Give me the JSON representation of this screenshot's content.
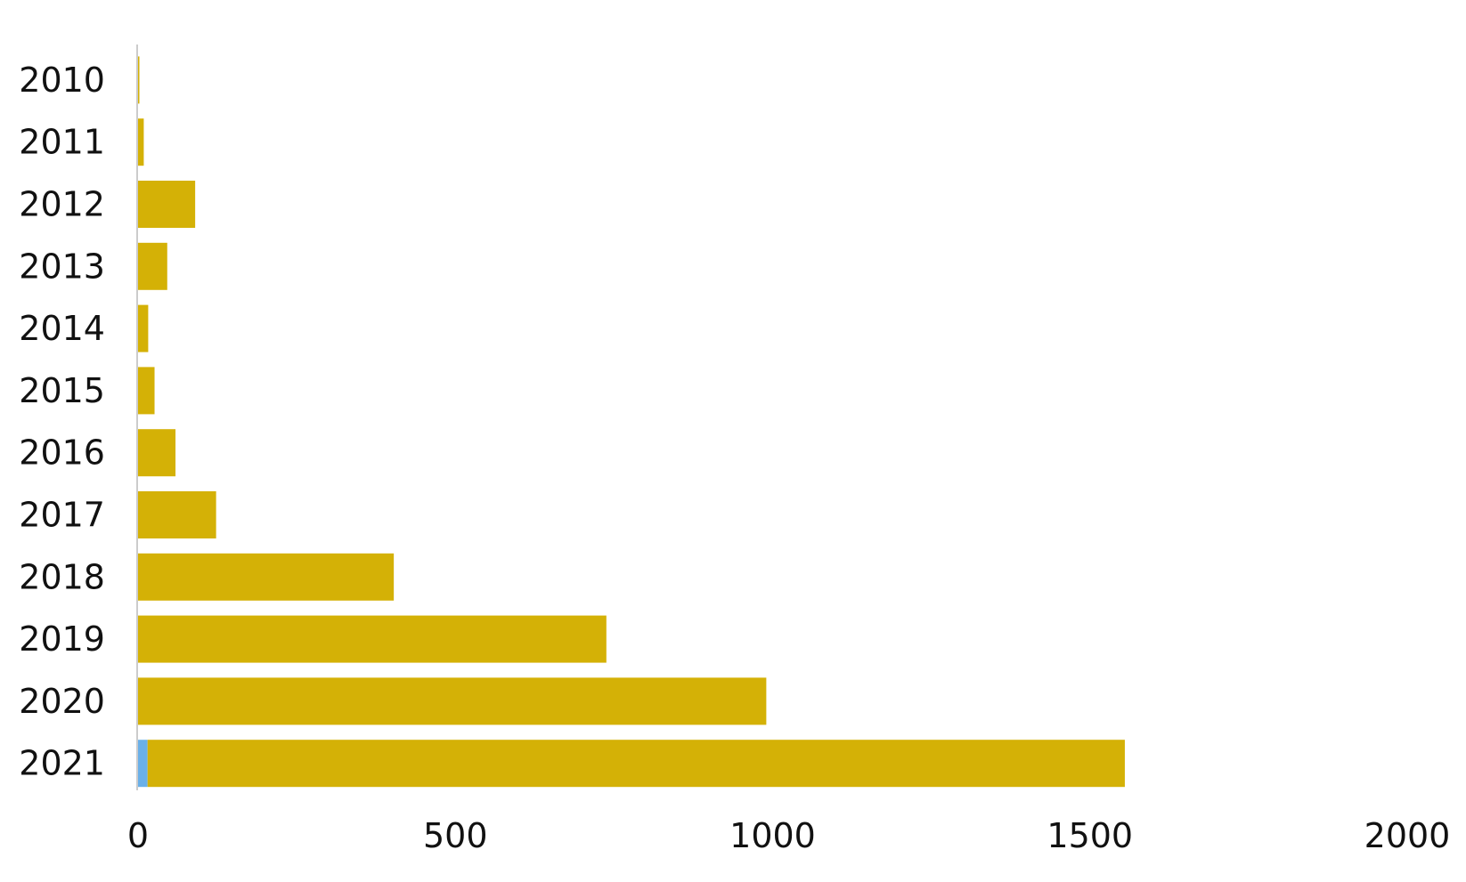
{
  "chart_data": {
    "type": "bar",
    "orientation": "horizontal",
    "stacked": true,
    "categories": [
      "2010",
      "2011",
      "2012",
      "2013",
      "2014",
      "2015",
      "2016",
      "2017",
      "2018",
      "2019",
      "2020",
      "2021"
    ],
    "series": [
      {
        "color": "#6ab0e8",
        "values": [
          0,
          0,
          0,
          0,
          0,
          0,
          0,
          0,
          0,
          0,
          0,
          15
        ]
      },
      {
        "color": "#d4b106",
        "values": [
          2,
          9,
          90,
          46,
          16,
          26,
          59,
          123,
          403,
          738,
          990,
          1540
        ]
      }
    ],
    "xlim": [
      0,
      2000
    ],
    "xticks": [
      "0",
      "500",
      "1000",
      "1500",
      "2000"
    ],
    "title": "",
    "xlabel": "",
    "ylabel": "",
    "grid": false,
    "legend": "none"
  }
}
